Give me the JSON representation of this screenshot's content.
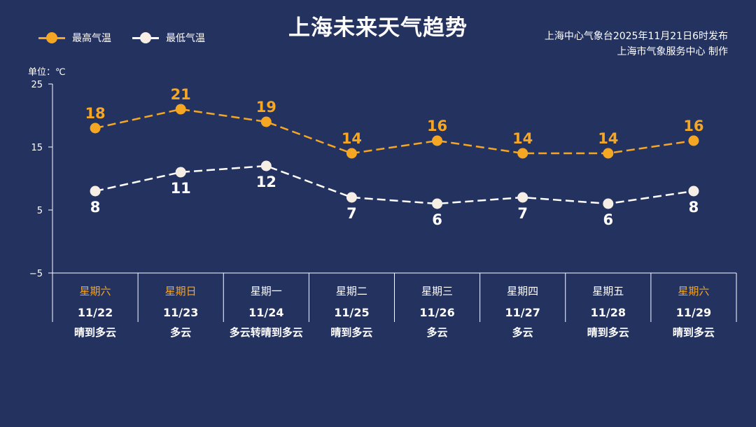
{
  "title": "上海未来天气趋势",
  "source_line1": "上海中心气象台2025年11月21日6时发布",
  "source_line2": "上海市气象服务中心  制作",
  "unit_label": "单位：℃",
  "colors": {
    "background": "#243260",
    "high": "#F5A623",
    "low": "#FFFFFF",
    "low_marker": "#F6EDE4",
    "weekend": "#F5A623",
    "weekday": "#FFFFFF"
  },
  "chart_data": {
    "type": "line",
    "xlabel": "",
    "ylabel": "单位：℃",
    "ylim": [
      -5,
      25
    ],
    "yticks": [
      -5,
      5,
      15,
      25
    ],
    "grid": false,
    "legend_position": "top-left",
    "days": [
      {
        "weekday": "星期六",
        "date": "11/22",
        "weather": "晴到多云",
        "weekend": true
      },
      {
        "weekday": "星期日",
        "date": "11/23",
        "weather": "多云",
        "weekend": true
      },
      {
        "weekday": "星期一",
        "date": "11/24",
        "weather": "多云转晴到多云",
        "weekend": false
      },
      {
        "weekday": "星期二",
        "date": "11/25",
        "weather": "晴到多云",
        "weekend": false
      },
      {
        "weekday": "星期三",
        "date": "11/26",
        "weather": "多云",
        "weekend": false
      },
      {
        "weekday": "星期四",
        "date": "11/27",
        "weather": "多云",
        "weekend": false
      },
      {
        "weekday": "星期五",
        "date": "11/28",
        "weather": "晴到多云",
        "weekend": false
      },
      {
        "weekday": "星期六",
        "date": "11/29",
        "weather": "晴到多云",
        "weekend": true
      }
    ],
    "series": [
      {
        "name": "最高气温",
        "values": [
          18,
          21,
          19,
          14,
          16,
          14,
          14,
          16
        ]
      },
      {
        "name": "最低气温",
        "values": [
          8,
          11,
          12,
          7,
          6,
          7,
          6,
          8
        ]
      }
    ]
  }
}
